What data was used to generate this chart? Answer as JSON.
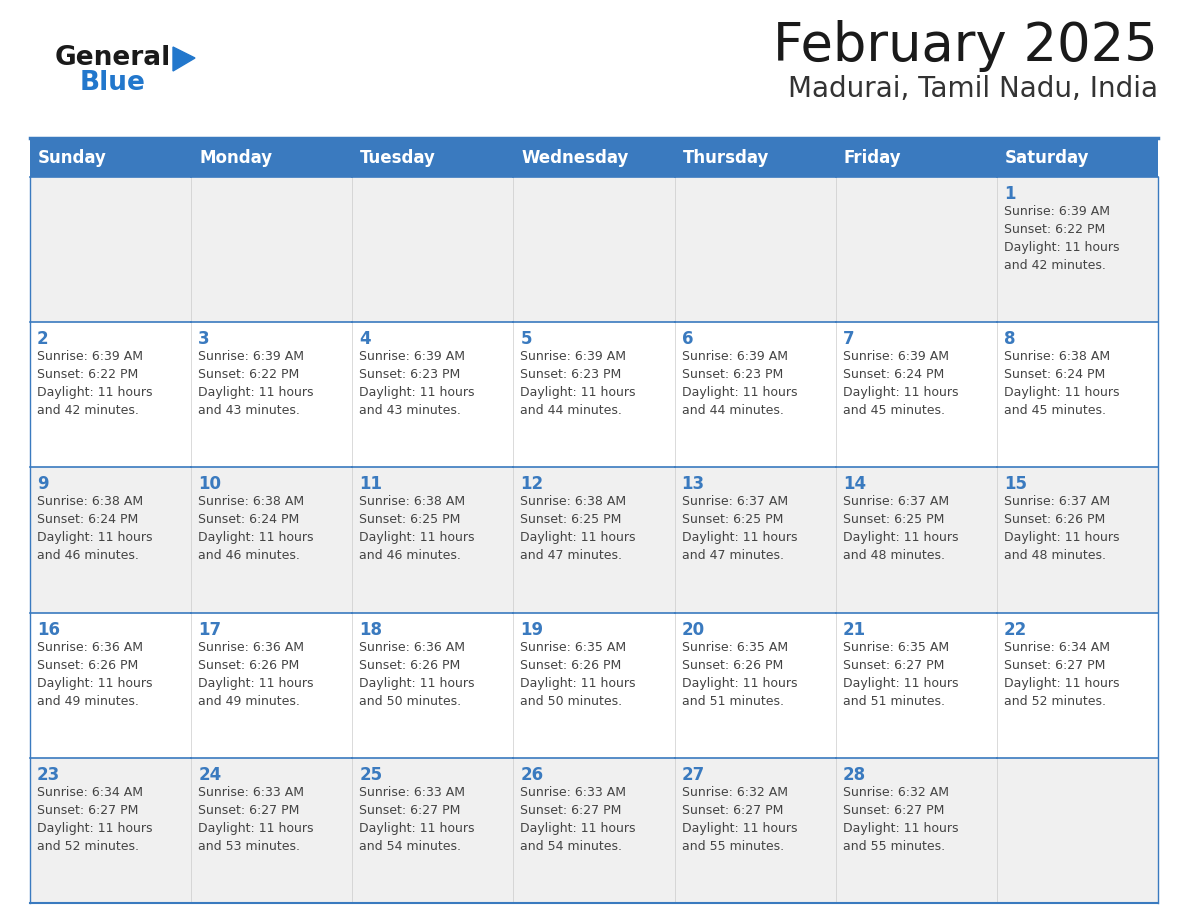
{
  "title": "February 2025",
  "subtitle": "Madurai, Tamil Nadu, India",
  "days_of_week": [
    "Sunday",
    "Monday",
    "Tuesday",
    "Wednesday",
    "Thursday",
    "Friday",
    "Saturday"
  ],
  "header_bg": "#3a7abf",
  "header_text": "#ffffff",
  "cell_bg_light": "#f0f0f0",
  "cell_bg_white": "#ffffff",
  "border_color": "#3a7abf",
  "day_number_color": "#3a7abf",
  "text_color": "#444444",
  "title_color": "#1a1a1a",
  "subtitle_color": "#333333",
  "logo_general_color": "#1a1a1a",
  "logo_blue_color": "#2277cc",
  "calendar_data": [
    [
      null,
      null,
      null,
      null,
      null,
      null,
      1
    ],
    [
      2,
      3,
      4,
      5,
      6,
      7,
      8
    ],
    [
      9,
      10,
      11,
      12,
      13,
      14,
      15
    ],
    [
      16,
      17,
      18,
      19,
      20,
      21,
      22
    ],
    [
      23,
      24,
      25,
      26,
      27,
      28,
      null
    ]
  ],
  "sunrise_data": {
    "1": "Sunrise: 6:39 AM\nSunset: 6:22 PM\nDaylight: 11 hours\nand 42 minutes.",
    "2": "Sunrise: 6:39 AM\nSunset: 6:22 PM\nDaylight: 11 hours\nand 42 minutes.",
    "3": "Sunrise: 6:39 AM\nSunset: 6:22 PM\nDaylight: 11 hours\nand 43 minutes.",
    "4": "Sunrise: 6:39 AM\nSunset: 6:23 PM\nDaylight: 11 hours\nand 43 minutes.",
    "5": "Sunrise: 6:39 AM\nSunset: 6:23 PM\nDaylight: 11 hours\nand 44 minutes.",
    "6": "Sunrise: 6:39 AM\nSunset: 6:23 PM\nDaylight: 11 hours\nand 44 minutes.",
    "7": "Sunrise: 6:39 AM\nSunset: 6:24 PM\nDaylight: 11 hours\nand 45 minutes.",
    "8": "Sunrise: 6:38 AM\nSunset: 6:24 PM\nDaylight: 11 hours\nand 45 minutes.",
    "9": "Sunrise: 6:38 AM\nSunset: 6:24 PM\nDaylight: 11 hours\nand 46 minutes.",
    "10": "Sunrise: 6:38 AM\nSunset: 6:24 PM\nDaylight: 11 hours\nand 46 minutes.",
    "11": "Sunrise: 6:38 AM\nSunset: 6:25 PM\nDaylight: 11 hours\nand 46 minutes.",
    "12": "Sunrise: 6:38 AM\nSunset: 6:25 PM\nDaylight: 11 hours\nand 47 minutes.",
    "13": "Sunrise: 6:37 AM\nSunset: 6:25 PM\nDaylight: 11 hours\nand 47 minutes.",
    "14": "Sunrise: 6:37 AM\nSunset: 6:25 PM\nDaylight: 11 hours\nand 48 minutes.",
    "15": "Sunrise: 6:37 AM\nSunset: 6:26 PM\nDaylight: 11 hours\nand 48 minutes.",
    "16": "Sunrise: 6:36 AM\nSunset: 6:26 PM\nDaylight: 11 hours\nand 49 minutes.",
    "17": "Sunrise: 6:36 AM\nSunset: 6:26 PM\nDaylight: 11 hours\nand 49 minutes.",
    "18": "Sunrise: 6:36 AM\nSunset: 6:26 PM\nDaylight: 11 hours\nand 50 minutes.",
    "19": "Sunrise: 6:35 AM\nSunset: 6:26 PM\nDaylight: 11 hours\nand 50 minutes.",
    "20": "Sunrise: 6:35 AM\nSunset: 6:26 PM\nDaylight: 11 hours\nand 51 minutes.",
    "21": "Sunrise: 6:35 AM\nSunset: 6:27 PM\nDaylight: 11 hours\nand 51 minutes.",
    "22": "Sunrise: 6:34 AM\nSunset: 6:27 PM\nDaylight: 11 hours\nand 52 minutes.",
    "23": "Sunrise: 6:34 AM\nSunset: 6:27 PM\nDaylight: 11 hours\nand 52 minutes.",
    "24": "Sunrise: 6:33 AM\nSunset: 6:27 PM\nDaylight: 11 hours\nand 53 minutes.",
    "25": "Sunrise: 6:33 AM\nSunset: 6:27 PM\nDaylight: 11 hours\nand 54 minutes.",
    "26": "Sunrise: 6:33 AM\nSunset: 6:27 PM\nDaylight: 11 hours\nand 54 minutes.",
    "27": "Sunrise: 6:32 AM\nSunset: 6:27 PM\nDaylight: 11 hours\nand 55 minutes.",
    "28": "Sunrise: 6:32 AM\nSunset: 6:27 PM\nDaylight: 11 hours\nand 55 minutes."
  }
}
